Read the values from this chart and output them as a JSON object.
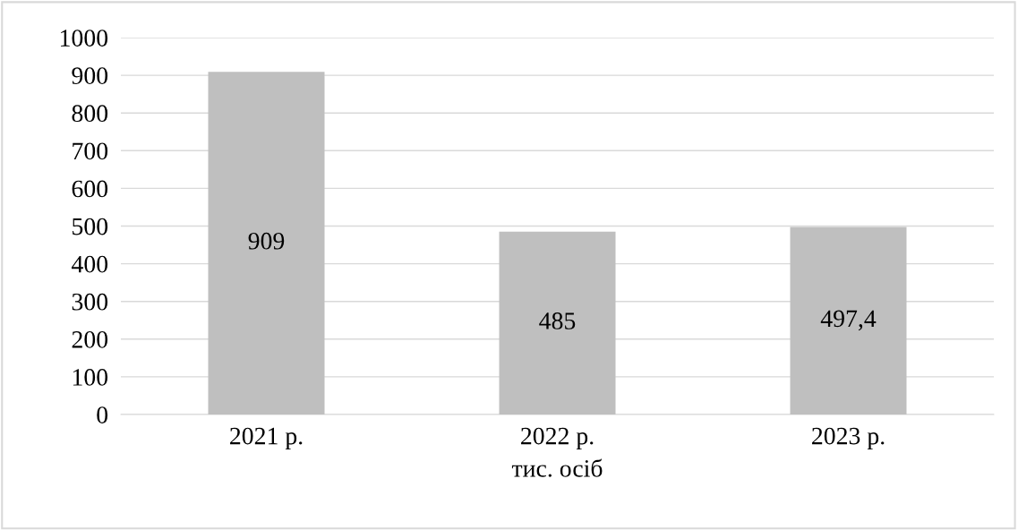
{
  "chart_data": {
    "type": "bar",
    "xlabel": "тис. осіб",
    "categories": [
      "2021 р.",
      "2022 р.",
      "2023 р."
    ],
    "values": [
      909,
      485,
      497.4
    ],
    "value_labels": [
      "909",
      "485",
      "497,4"
    ],
    "color": "#bfbfbf",
    "ylim": [
      0,
      1000
    ],
    "yticks": [
      0,
      100,
      200,
      300,
      400,
      500,
      600,
      700,
      800,
      900,
      1000
    ],
    "grid": "y",
    "legend": false
  }
}
